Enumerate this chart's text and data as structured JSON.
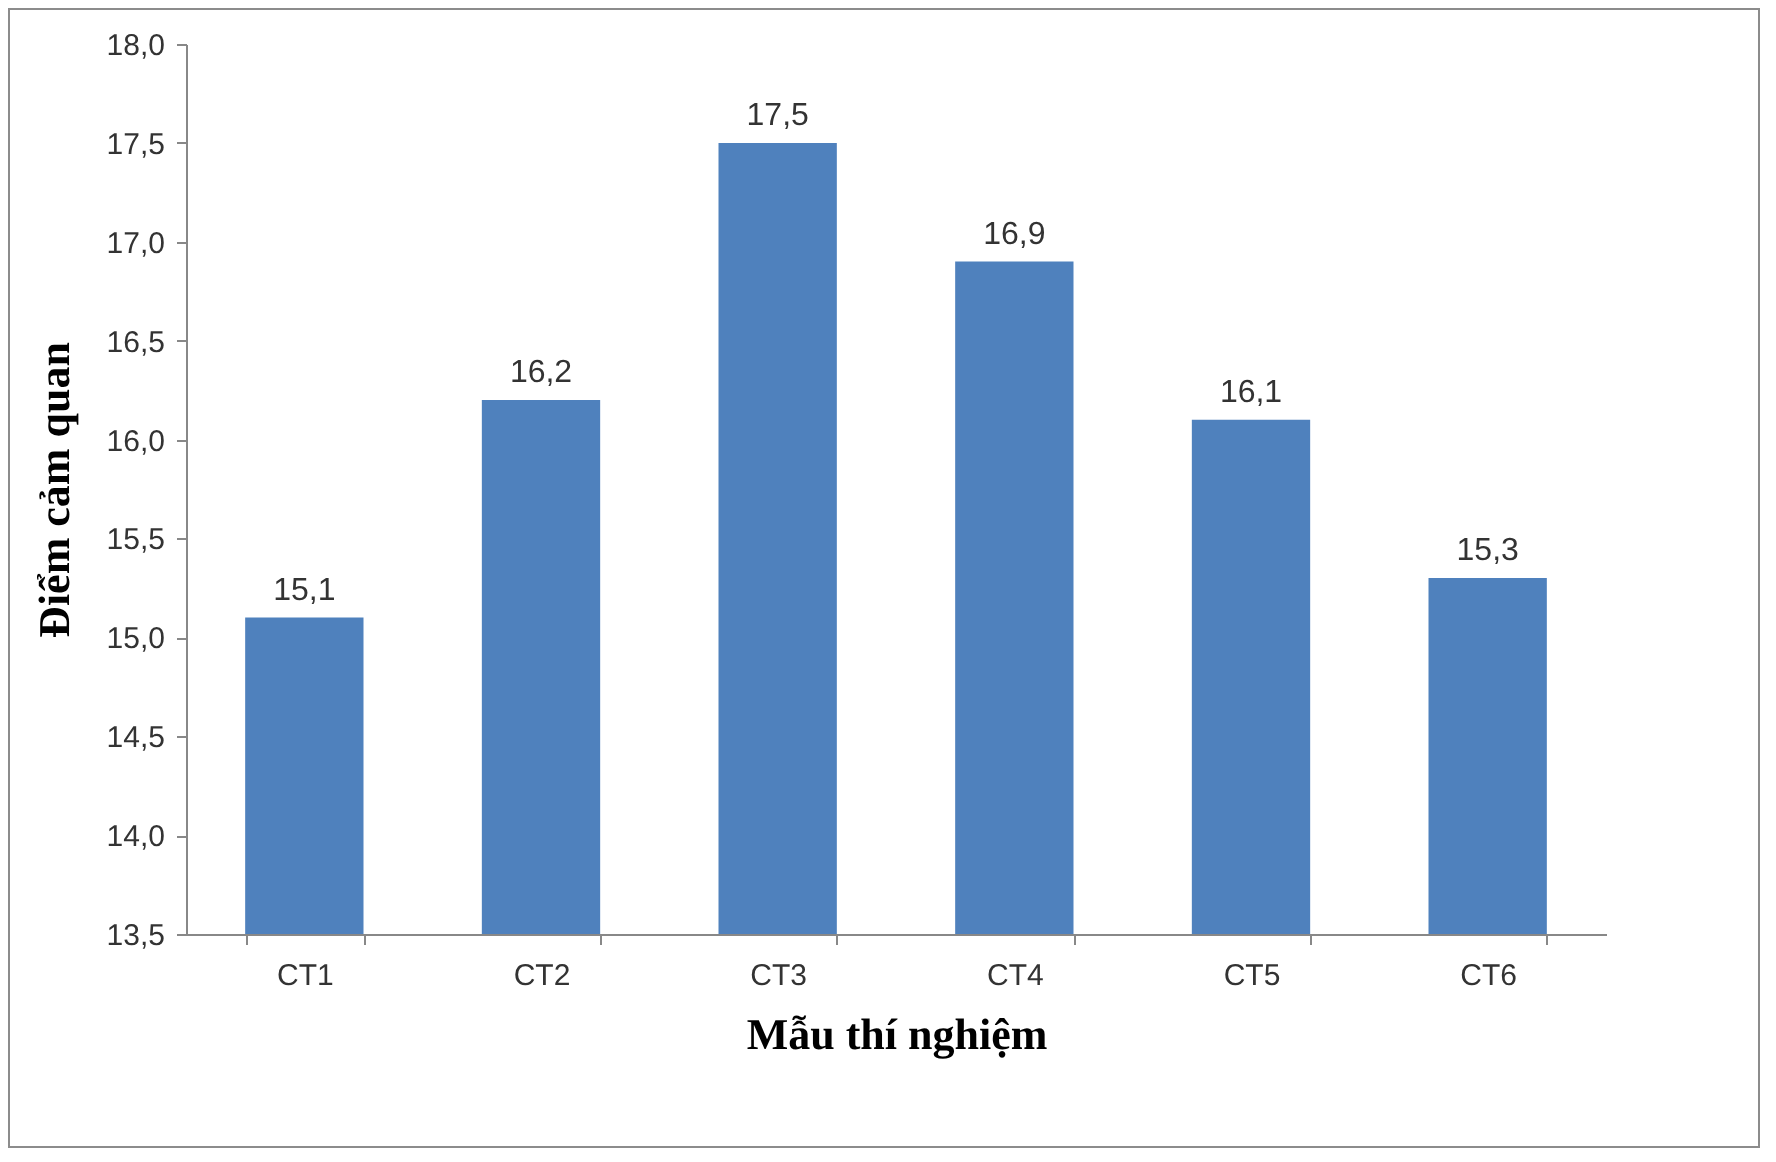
{
  "chart_data": {
    "type": "bar",
    "xlabel": "Mẫu thí nghiệm",
    "ylabel": "Điểm cảm quan",
    "categories": [
      "CT1",
      "CT2",
      "CT3",
      "CT4",
      "CT5",
      "CT6"
    ],
    "values": [
      15.1,
      16.2,
      17.5,
      16.9,
      16.1,
      15.3
    ],
    "value_labels": [
      "15,1",
      "16,2",
      "17,5",
      "16,9",
      "16,1",
      "15,3"
    ],
    "color": "#4f81bd",
    "ylim": [
      13.5,
      18.0
    ],
    "yticks": [
      {
        "value": 13.5,
        "label": "13,5"
      },
      {
        "value": 14.0,
        "label": "14,0"
      },
      {
        "value": 14.5,
        "label": "14,5"
      },
      {
        "value": 15.0,
        "label": "15,0"
      },
      {
        "value": 15.5,
        "label": "15,5"
      },
      {
        "value": 16.0,
        "label": "16,0"
      },
      {
        "value": 16.5,
        "label": "16,5"
      },
      {
        "value": 17.0,
        "label": "17,0"
      },
      {
        "value": 17.5,
        "label": "17,5"
      },
      {
        "value": 18.0,
        "label": "18,0"
      }
    ],
    "grid": false
  }
}
